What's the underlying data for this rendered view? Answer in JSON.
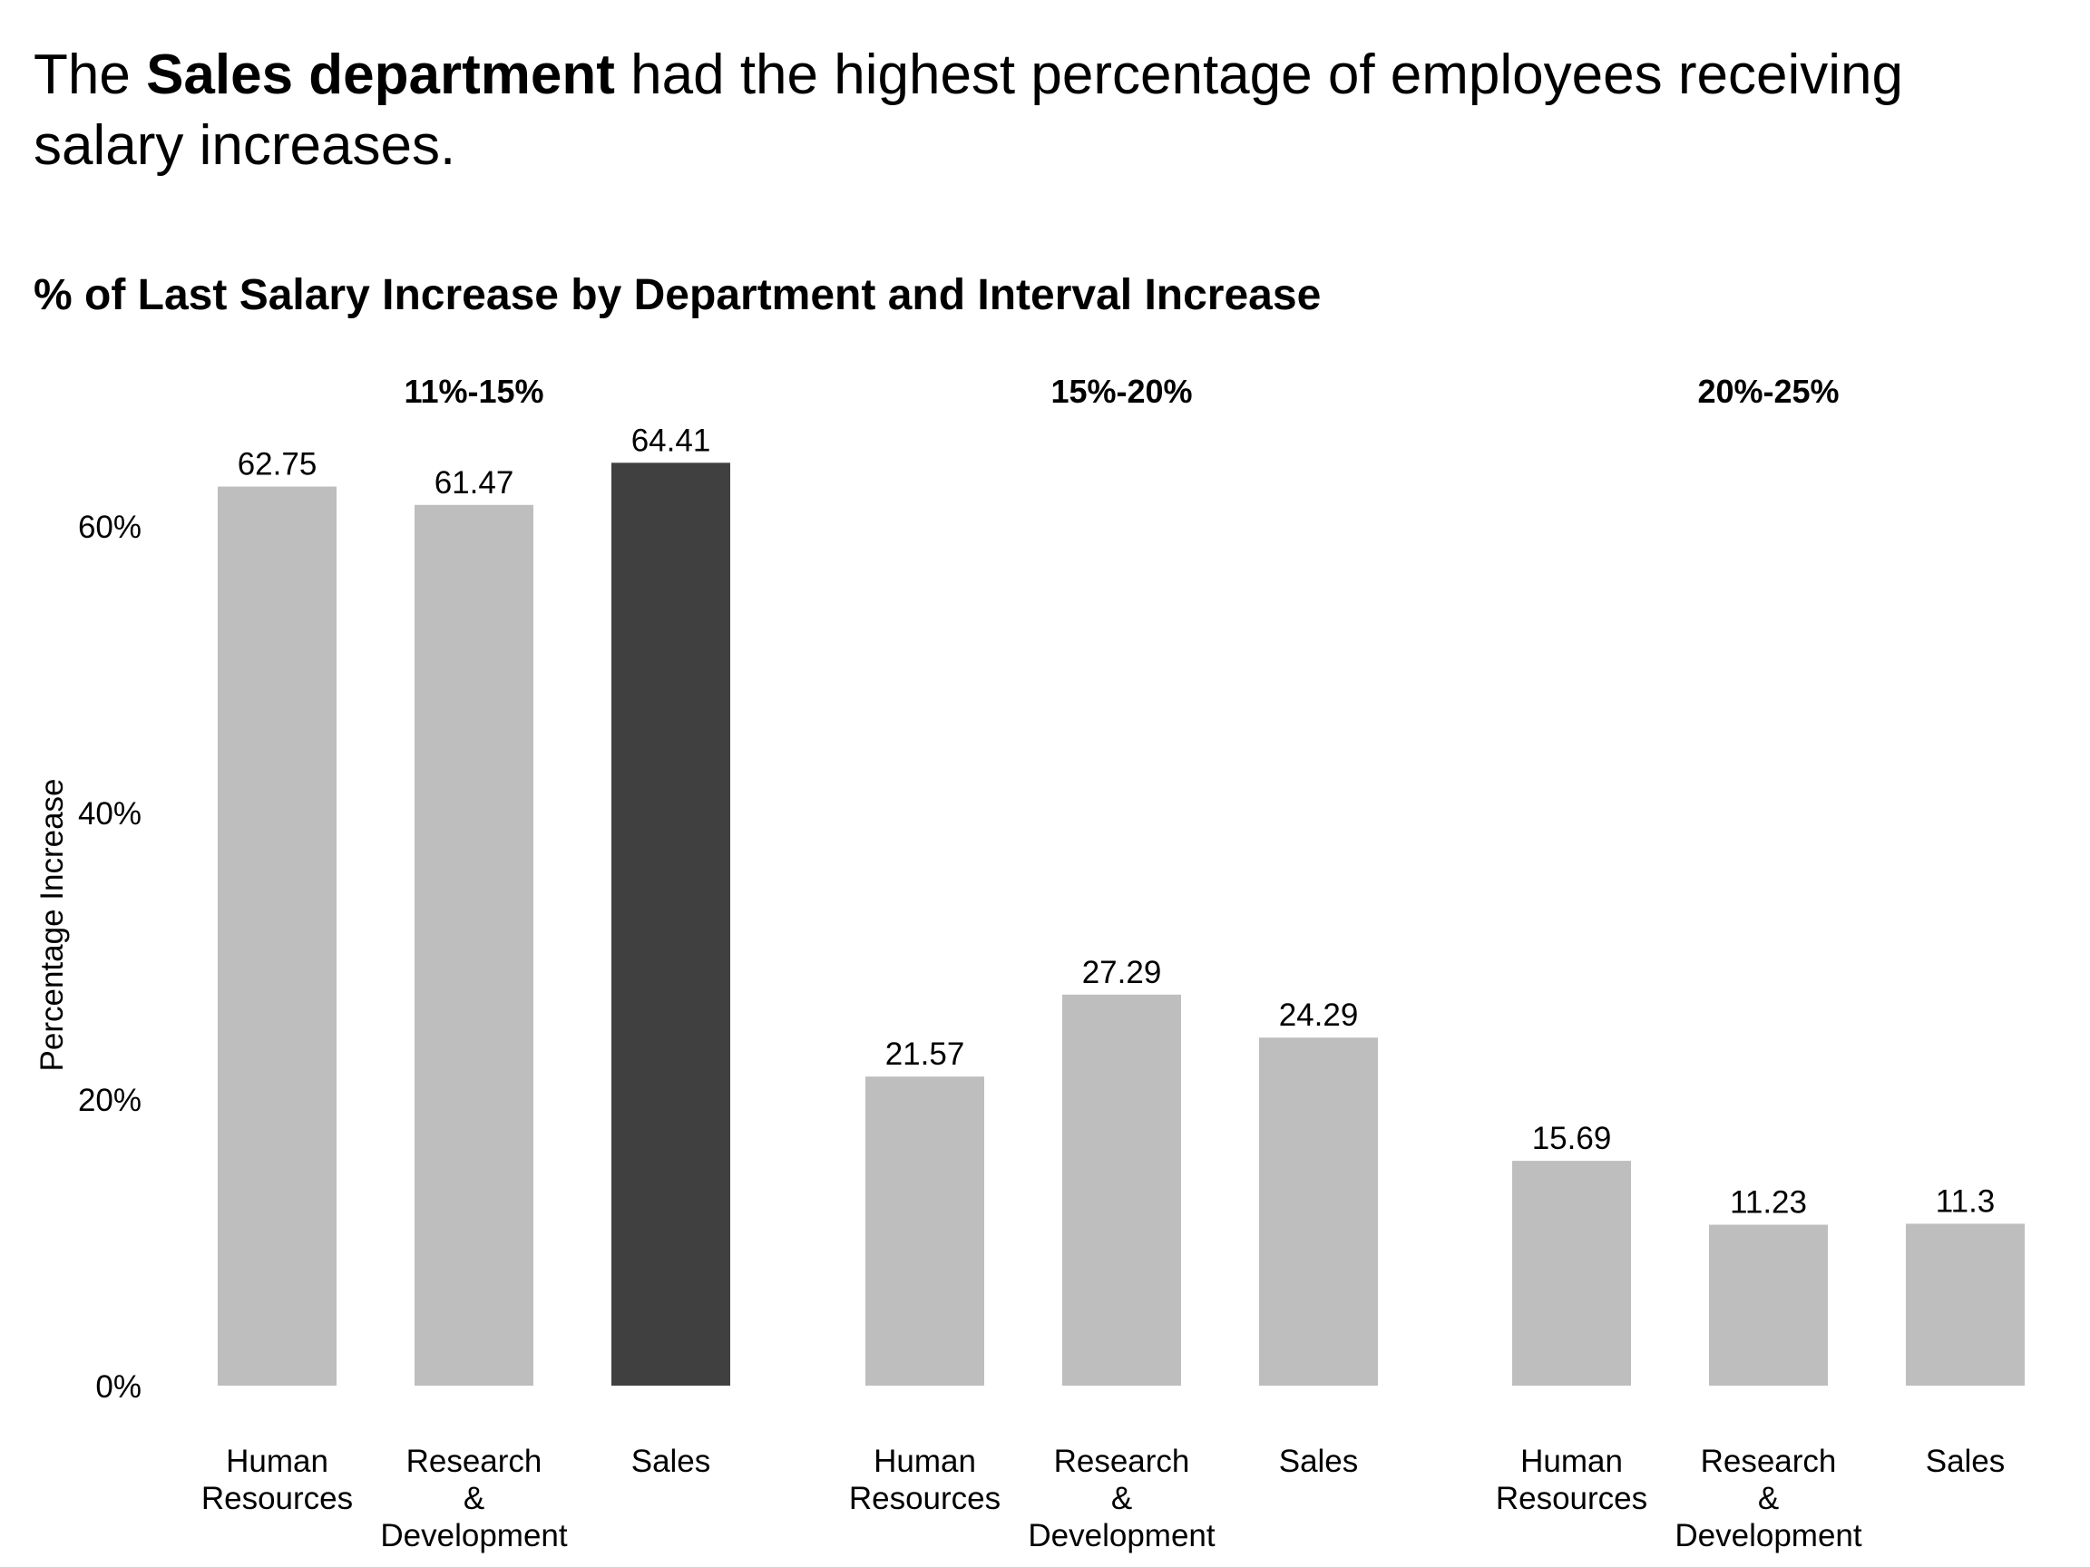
{
  "headline": {
    "prefix": "The ",
    "bold": "Sales department",
    "suffix": " had the highest percentage of employees receiving salary increases."
  },
  "chart_data": {
    "type": "bar",
    "title": "% of Last Salary Increase by Department and Interval Increase",
    "ylabel": "Percentage Increase",
    "xlabel": "",
    "ylim": [
      0,
      70
    ],
    "y_ticks": [
      {
        "value": 0,
        "label": "0%"
      },
      {
        "value": 20,
        "label": "20%"
      },
      {
        "value": 40,
        "label": "40%"
      },
      {
        "value": 60,
        "label": "60%"
      }
    ],
    "grid": false,
    "colors": {
      "default": "#bebebe",
      "highlight": "#404040"
    },
    "panels": [
      {
        "label": "11%-15%",
        "categories": [
          [
            "Human",
            "Resources"
          ],
          [
            "Research",
            "&",
            "Development"
          ],
          [
            "Sales"
          ]
        ],
        "values": [
          62.75,
          61.47,
          64.41
        ],
        "labels": [
          "62.75",
          "61.47",
          "64.41"
        ],
        "highlight": [
          false,
          false,
          true
        ]
      },
      {
        "label": "15%-20%",
        "categories": [
          [
            "Human",
            "Resources"
          ],
          [
            "Research",
            "&",
            "Development"
          ],
          [
            "Sales"
          ]
        ],
        "values": [
          21.57,
          27.29,
          24.29
        ],
        "labels": [
          "21.57",
          "27.29",
          "24.29"
        ],
        "highlight": [
          false,
          false,
          false
        ]
      },
      {
        "label": "20%-25%",
        "categories": [
          [
            "Human",
            "Resources"
          ],
          [
            "Research",
            "&",
            "Development"
          ],
          [
            "Sales"
          ]
        ],
        "values": [
          15.69,
          11.23,
          11.3
        ],
        "labels": [
          "15.69",
          "11.23",
          "11.3"
        ],
        "highlight": [
          false,
          false,
          false
        ]
      }
    ]
  }
}
